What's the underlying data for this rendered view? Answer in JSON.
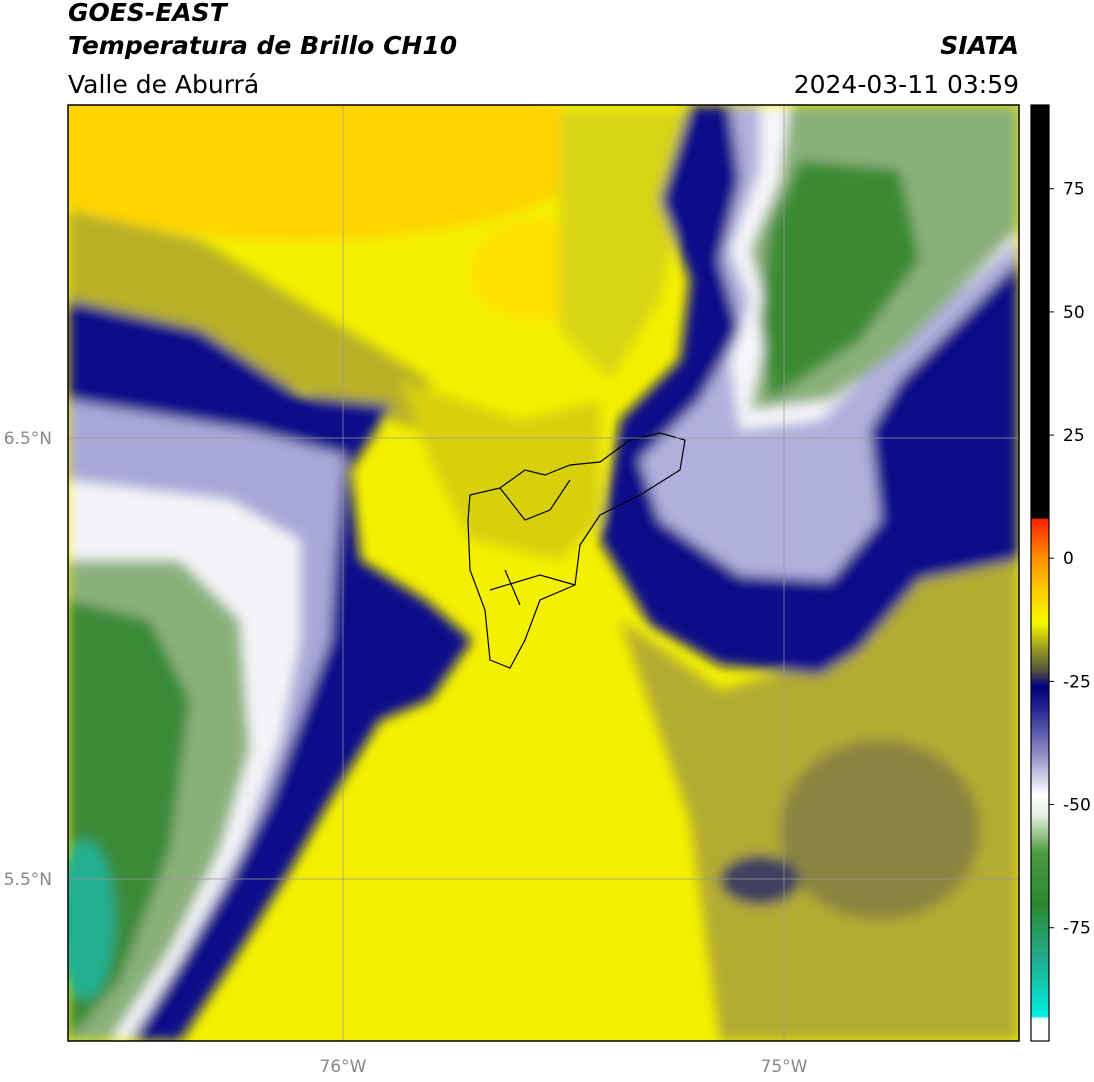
{
  "header": {
    "title": "GOES-EAST",
    "subtitle": "Temperatura de Brillo CH10",
    "region": "Valle de Aburrá",
    "source": "SIATA",
    "timestamp": "2024-03-11 03:59"
  },
  "map": {
    "lat_labels": [
      "6.5°N",
      "5.5°N"
    ],
    "lon_labels": [
      "76°W",
      "75°W"
    ]
  },
  "colorbar": {
    "lim": [
      -98,
      92
    ],
    "ticks": [
      75,
      50,
      25,
      0,
      -25,
      -50,
      -75
    ],
    "stops": [
      {
        "value": -98,
        "color": "#ffffff"
      },
      {
        "value": -93.5,
        "color": "#ffffff"
      },
      {
        "value": -93,
        "color": "#00f0e0"
      },
      {
        "value": -82,
        "color": "#20b090"
      },
      {
        "value": -70,
        "color": "#2a8a30"
      },
      {
        "value": -60,
        "color": "#4a9a40"
      },
      {
        "value": -52,
        "color": "#e8f0e0"
      },
      {
        "value": -48,
        "color": "#ffffff"
      },
      {
        "value": -40,
        "color": "#9090c8"
      },
      {
        "value": -30,
        "color": "#202090"
      },
      {
        "value": -26,
        "color": "#000080"
      },
      {
        "value": -23,
        "color": "#505040"
      },
      {
        "value": -18,
        "color": "#a0a020"
      },
      {
        "value": -13,
        "color": "#f8f800"
      },
      {
        "value": -7,
        "color": "#ffd000"
      },
      {
        "value": 0,
        "color": "#ff9000"
      },
      {
        "value": 8,
        "color": "#ff2000"
      },
      {
        "value": 8.1,
        "color": "#000000"
      },
      {
        "value": 92,
        "color": "#000000"
      }
    ]
  }
}
